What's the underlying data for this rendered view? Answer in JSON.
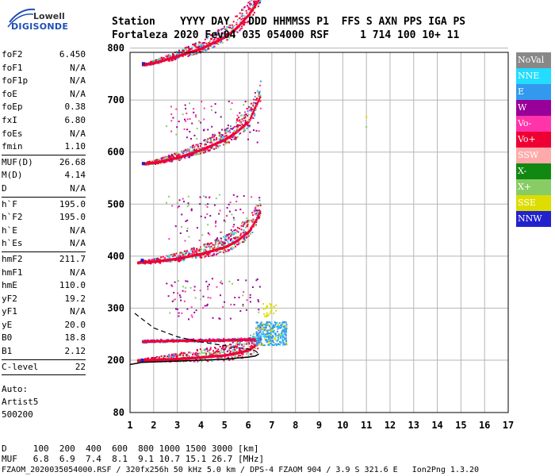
{
  "logo": {
    "line1": "Lowell",
    "line2": "DIGISONDE"
  },
  "header": {
    "labels": "Station    YYYY DAY   DDD HHMMSS P1  FFS S AXN PPS IGA PS",
    "values": "Fortaleza 2020 Fev04 035 054000 RSF     1 714 100 10+ 11"
  },
  "params": [
    {
      "label": "foF2",
      "value": "6.450"
    },
    {
      "label": "foF1",
      "value": "N/A"
    },
    {
      "label": "foF1p",
      "value": "N/A"
    },
    {
      "label": "foE",
      "value": "N/A"
    },
    {
      "label": "foEp",
      "value": "0.38"
    },
    {
      "label": "fxI",
      "value": "6.80"
    },
    {
      "label": "foEs",
      "value": "N/A"
    },
    {
      "label": "fmin",
      "value": "1.10"
    },
    {
      "sep": true
    },
    {
      "label": "MUF(D)",
      "value": "26.68"
    },
    {
      "label": "M(D)",
      "value": "4.14"
    },
    {
      "label": "D",
      "value": "N/A"
    },
    {
      "sep": true
    },
    {
      "label": "h`F",
      "value": "195.0"
    },
    {
      "label": "h`F2",
      "value": "195.0"
    },
    {
      "label": "h`E",
      "value": "N/A"
    },
    {
      "label": "h`Es",
      "value": "N/A"
    },
    {
      "sep": true
    },
    {
      "label": "hmF2",
      "value": "211.7"
    },
    {
      "label": "hmF1",
      "value": "N/A"
    },
    {
      "label": "hmE",
      "value": "110.0"
    },
    {
      "label": "yF2",
      "value": "19.2"
    },
    {
      "label": "yF1",
      "value": "N/A"
    },
    {
      "label": "yE",
      "value": "20.0"
    },
    {
      "label": "B0",
      "value": "18.8"
    },
    {
      "label": "B1",
      "value": "2.12"
    },
    {
      "sep": true
    },
    {
      "label": "C-level",
      "value": "22"
    },
    {
      "sep": true
    }
  ],
  "auto": [
    "Auto:",
    "Artist5",
    "500200"
  ],
  "legend": [
    {
      "label": "NoVal",
      "color": "#888888"
    },
    {
      "label": "NNE",
      "color": "#22ddff"
    },
    {
      "label": "E",
      "color": "#3399ee"
    },
    {
      "label": "W",
      "color": "#990099"
    },
    {
      "label": "Vo-",
      "color": "#ff33aa"
    },
    {
      "label": "Vo+",
      "color": "#ee0033"
    },
    {
      "label": "SSW",
      "color": "#ffaaaa"
    },
    {
      "label": "X-",
      "color": "#118811"
    },
    {
      "label": "X+",
      "color": "#88cc66"
    },
    {
      "label": "SSE",
      "color": "#dddd00"
    },
    {
      "label": "NNW",
      "color": "#2222cc"
    }
  ],
  "footer": {
    "d_line": "D     100  200  400  600  800 1000 1500 3000 [km]",
    "muf_line": "MUF   6.8  6.9  7.4  8.1  9.1 10.7 15.1 26.7 [MHz]",
    "file_line": "FZAOM_2020035054000.RSF / 320fx256h 50 kHz 5.0 km / DPS-4 FZAOM 904 / 3.9 S 321.6 E   Ion2Png 1.3.20"
  },
  "chart_data": {
    "type": "scatter",
    "title": "",
    "xlabel": "",
    "ylabel": "",
    "xlim": [
      1,
      17
    ],
    "ylim": [
      80,
      900
    ],
    "xticks": [
      1,
      2,
      3,
      4,
      5,
      6,
      7,
      8,
      9,
      10,
      11,
      12,
      13,
      14,
      15,
      16,
      17
    ],
    "yticks": [
      80,
      200,
      300,
      400,
      500,
      600,
      700,
      800,
      900
    ],
    "grid": true,
    "traces": [
      {
        "name": "O-trace 1",
        "x": [
          1.3,
          2,
          3,
          4,
          5,
          5.5,
          6,
          6.3,
          6.5
        ],
        "y": [
          200,
          201,
          203,
          206,
          210,
          214,
          220,
          230,
          245
        ]
      },
      {
        "name": "O-trace 2",
        "x": [
          1.3,
          2,
          3,
          4,
          5,
          5.5,
          6,
          6.3,
          6.5
        ],
        "y": [
          388,
          390,
          396,
          405,
          418,
          430,
          448,
          470,
          490
        ]
      },
      {
        "name": "O-trace 3",
        "x": [
          1.5,
          2,
          3,
          4,
          5,
          5.5,
          6,
          6.3,
          6.5
        ],
        "y": [
          578,
          580,
          590,
          605,
          625,
          640,
          660,
          690,
          710
        ]
      },
      {
        "name": "O-trace 4",
        "x": [
          1.5,
          2,
          3,
          4,
          5,
          5.5,
          6,
          6.3,
          6.5
        ],
        "y": [
          768,
          772,
          785,
          800,
          822,
          840,
          865,
          885,
          900
        ]
      },
      {
        "name": "Es trace",
        "x": [
          1.5,
          2,
          3,
          4,
          5,
          6,
          6.5
        ],
        "y": [
          236,
          237,
          238,
          238,
          239,
          240,
          241
        ]
      }
    ],
    "profile": {
      "x": [
        1,
        1.5,
        2,
        3,
        4,
        5,
        5.5,
        6,
        6.3,
        6.45
      ],
      "y": [
        190,
        195,
        196,
        198,
        200,
        202,
        204,
        206,
        208,
        212
      ]
    },
    "extrapolated": {
      "x": [
        1.2,
        2,
        3,
        4,
        5,
        5.5,
        6,
        6.3,
        6.45
      ],
      "y": [
        290,
        262,
        245,
        235,
        228,
        224,
        222,
        218,
        212
      ]
    },
    "spot": {
      "x": 11,
      "y": [
        670,
        650
      ]
    }
  }
}
